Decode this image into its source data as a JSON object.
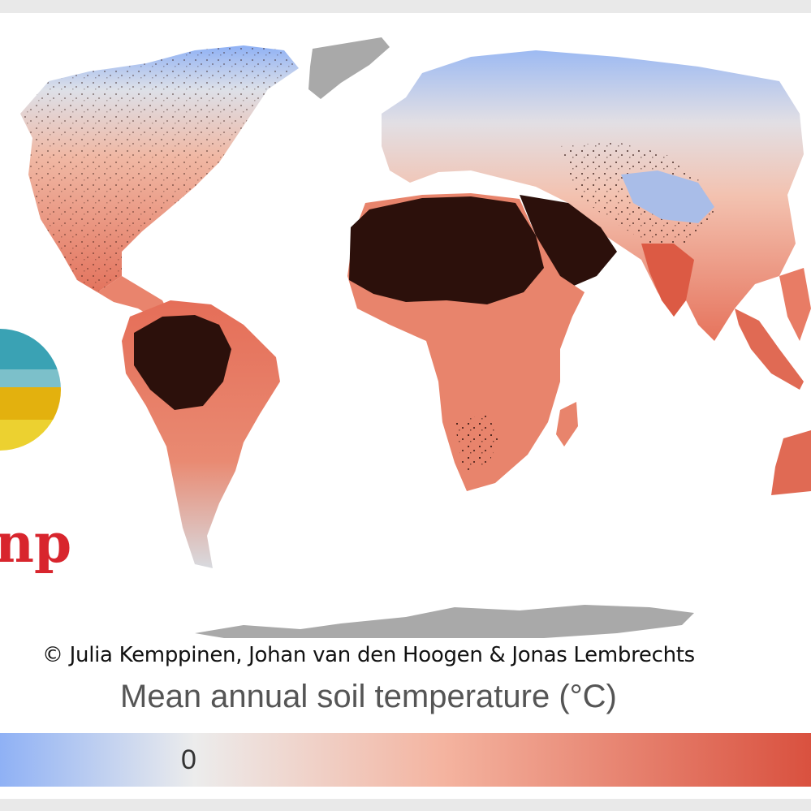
{
  "credit": "© Julia Kemppinen, Johan van den Hoogen & Jonas Lembrechts",
  "legend": {
    "title": "Mean annual soil temperature (°C)",
    "tick_label": "0",
    "colors": {
      "cold": "#8fb1f5",
      "neutral": "#ececec",
      "warm": "#f4b39f",
      "hot": "#d9513f"
    }
  },
  "map_colors": {
    "ice": "#a9a9a9",
    "cold": "#8fb1f5",
    "cool": "#dde0e8",
    "mild": "#f3c7b6",
    "warm": "#ec8b72",
    "hot": "#d9513f",
    "hottest": "#2c100b"
  },
  "logo": {
    "text": "np",
    "colors": {
      "teal": "#3aa2b4",
      "light_teal": "#7cc0ca",
      "yellow": "#e3b10e",
      "light_yellow": "#ecd130",
      "red": "#d8252d"
    }
  }
}
